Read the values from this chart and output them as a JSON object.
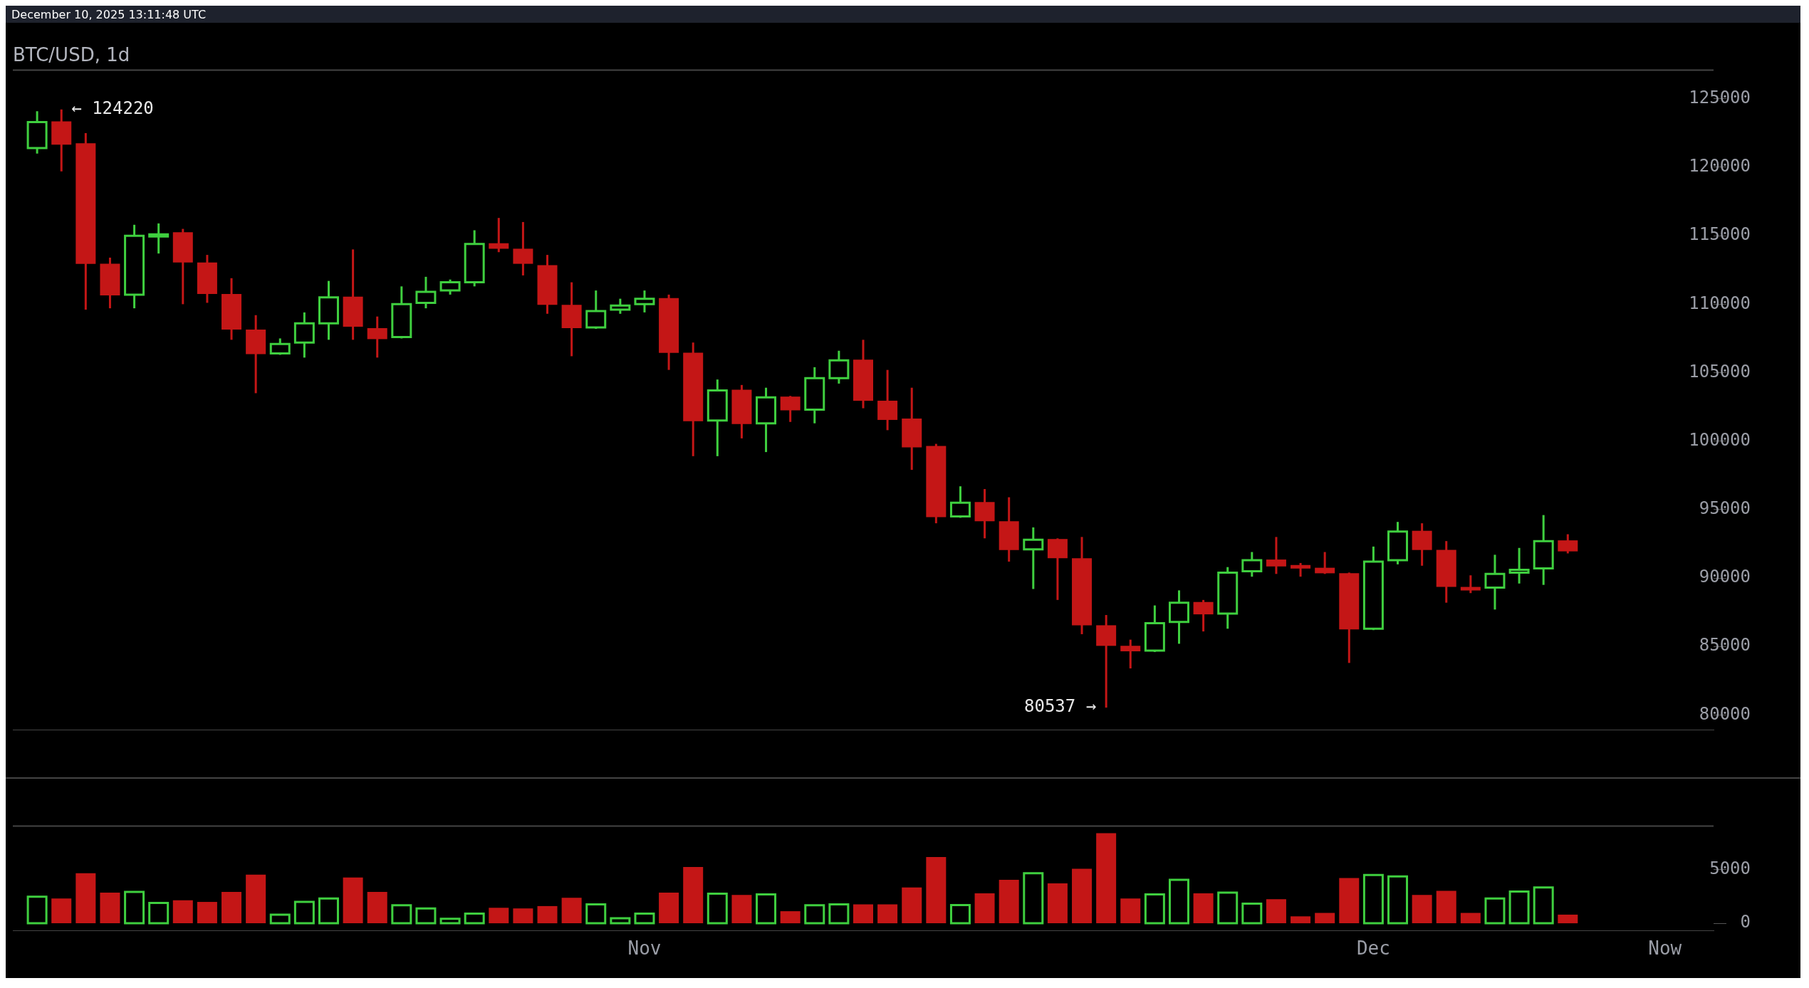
{
  "chart_data": [
    {
      "type": "candlestick",
      "title": "BTC/USD, 1d",
      "annotations": [
        "December 10, 2025 13:11:48 UTC",
        {
          "text": "← 124220",
          "x": "2025-10-08",
          "y": 124220
        },
        {
          "text": "80537 →",
          "x": "2025-11-20",
          "y": 80537
        }
      ],
      "x": [
        "2025-10-07",
        "2025-10-08",
        "2025-10-09",
        "2025-10-10",
        "2025-10-11",
        "2025-10-12",
        "2025-10-13",
        "2025-10-14",
        "2025-10-15",
        "2025-10-16",
        "2025-10-17",
        "2025-10-18",
        "2025-10-19",
        "2025-10-20",
        "2025-10-21",
        "2025-10-22",
        "2025-10-23",
        "2025-10-24",
        "2025-10-25",
        "2025-10-26",
        "2025-10-27",
        "2025-10-28",
        "2025-10-29",
        "2025-10-30",
        "2025-10-31",
        "2025-11-01",
        "2025-11-02",
        "2025-11-03",
        "2025-11-04",
        "2025-11-05",
        "2025-11-06",
        "2025-11-07",
        "2025-11-08",
        "2025-11-09",
        "2025-11-10",
        "2025-11-11",
        "2025-11-12",
        "2025-11-13",
        "2025-11-14",
        "2025-11-15",
        "2025-11-16",
        "2025-11-17",
        "2025-11-18",
        "2025-11-19",
        "2025-11-20",
        "2025-11-21",
        "2025-11-22",
        "2025-11-23",
        "2025-11-24",
        "2025-11-25",
        "2025-11-26",
        "2025-11-27",
        "2025-11-28",
        "2025-11-29",
        "2025-11-30",
        "2025-12-01",
        "2025-12-02",
        "2025-12-03",
        "2025-12-04",
        "2025-12-05",
        "2025-12-06",
        "2025-12-07",
        "2025-12-08",
        "2025-12-09"
      ],
      "ohlc": [
        [
          121400,
          124090,
          121000,
          123300
        ],
        [
          123300,
          124220,
          119700,
          121700
        ],
        [
          121700,
          122500,
          109600,
          113000
        ],
        [
          112900,
          113400,
          109700,
          110700
        ],
        [
          110700,
          115800,
          109700,
          115000
        ],
        [
          115000,
          115900,
          113700,
          115100
        ],
        [
          115200,
          115500,
          110000,
          113100
        ],
        [
          113000,
          113600,
          110100,
          110800
        ],
        [
          110700,
          111900,
          107400,
          108200
        ],
        [
          108100,
          109200,
          103500,
          106400
        ],
        [
          106400,
          107500,
          106300,
          107100
        ],
        [
          107200,
          109400,
          106100,
          108600
        ],
        [
          108600,
          111700,
          107400,
          110500
        ],
        [
          110500,
          114000,
          107400,
          108400
        ],
        [
          108200,
          109100,
          106100,
          107500
        ],
        [
          107600,
          111300,
          107500,
          110000
        ],
        [
          110100,
          112000,
          109700,
          110900
        ],
        [
          111000,
          111800,
          110700,
          111600
        ],
        [
          111600,
          115400,
          111300,
          114400
        ],
        [
          114400,
          116300,
          113800,
          114100
        ],
        [
          114000,
          116000,
          112100,
          113000
        ],
        [
          112800,
          113600,
          109300,
          110000
        ],
        [
          109900,
          111600,
          106200,
          108300
        ],
        [
          108300,
          111000,
          108200,
          109500
        ],
        [
          109600,
          110400,
          109300,
          109900
        ],
        [
          110000,
          111000,
          109400,
          110400
        ],
        [
          110400,
          110700,
          105200,
          106500
        ],
        [
          106400,
          107200,
          98900,
          101500
        ],
        [
          101500,
          104500,
          98900,
          103700
        ],
        [
          103700,
          104100,
          100200,
          101300
        ],
        [
          101300,
          103900,
          99200,
          103200
        ],
        [
          103200,
          103300,
          101400,
          102300
        ],
        [
          102300,
          105400,
          101300,
          104600
        ],
        [
          104600,
          106600,
          104200,
          105900
        ],
        [
          105900,
          107400,
          102400,
          103000
        ],
        [
          102900,
          105200,
          100800,
          101600
        ],
        [
          101600,
          103900,
          97900,
          99600
        ],
        [
          99600,
          99800,
          94000,
          94500
        ],
        [
          94500,
          96700,
          94400,
          95500
        ],
        [
          95500,
          96500,
          92900,
          94200
        ],
        [
          94100,
          95900,
          91200,
          92100
        ],
        [
          92100,
          93700,
          89200,
          92800
        ],
        [
          92800,
          92900,
          88400,
          91500
        ],
        [
          91400,
          93000,
          85900,
          86600
        ],
        [
          86500,
          87300,
          80537,
          85100
        ],
        [
          85000,
          85500,
          83400,
          84700
        ],
        [
          84700,
          88000,
          84600,
          86700
        ],
        [
          86800,
          89100,
          85200,
          88200
        ],
        [
          88200,
          88400,
          86100,
          87400
        ],
        [
          87400,
          90800,
          86300,
          90400
        ],
        [
          90500,
          91900,
          90100,
          91300
        ],
        [
          91300,
          93000,
          90300,
          90900
        ],
        [
          90900,
          91100,
          90100,
          90800
        ],
        [
          90700,
          91900,
          90300,
          90400
        ],
        [
          90300,
          90400,
          83800,
          86300
        ],
        [
          86300,
          92300,
          86200,
          91200
        ],
        [
          91300,
          94100,
          91000,
          93400
        ],
        [
          93400,
          94000,
          90900,
          92100
        ],
        [
          92000,
          92700,
          88200,
          89400
        ],
        [
          89300,
          90200,
          88900,
          89200
        ],
        [
          89300,
          91700,
          87700,
          90300
        ],
        [
          90400,
          92200,
          89600,
          90600
        ],
        [
          90700,
          94600,
          89500,
          92700
        ],
        [
          92700,
          93200,
          91800,
          92000
        ]
      ],
      "colors": [
        "#3fcf3f",
        "#c41616",
        "#c41616",
        "#c41616",
        "#3fcf3f",
        "#3fcf3f",
        "#c41616",
        "#c41616",
        "#c41616",
        "#c41616",
        "#3fcf3f",
        "#3fcf3f",
        "#3fcf3f",
        "#c41616",
        "#c41616",
        "#3fcf3f",
        "#3fcf3f",
        "#3fcf3f",
        "#3fcf3f",
        "#c41616",
        "#c41616",
        "#c41616",
        "#c41616",
        "#3fcf3f",
        "#3fcf3f",
        "#3fcf3f",
        "#c41616",
        "#c41616",
        "#3fcf3f",
        "#c41616",
        "#3fcf3f",
        "#c41616",
        "#3fcf3f",
        "#3fcf3f",
        "#c41616",
        "#c41616",
        "#c41616",
        "#c41616",
        "#3fcf3f",
        "#c41616",
        "#c41616",
        "#3fcf3f",
        "#c41616",
        "#c41616",
        "#c41616",
        "#c41616",
        "#3fcf3f",
        "#3fcf3f",
        "#c41616",
        "#3fcf3f",
        "#3fcf3f",
        "#c41616",
        "#c41616",
        "#c41616",
        "#c41616",
        "#3fcf3f",
        "#3fcf3f",
        "#c41616",
        "#c41616",
        "#c41616",
        "#3fcf3f",
        "#3fcf3f",
        "#3fcf3f",
        "#c41616"
      ],
      "xlim": [
        "2025-10-06",
        "2025-12-15"
      ],
      "ylim": [
        78900,
        127100
      ],
      "yticks": [
        80000,
        85000,
        90000,
        95000,
        100000,
        105000,
        110000,
        115000,
        120000,
        125000
      ],
      "tick_labels": "y",
      "grid": false,
      "legend": false
    },
    {
      "type": "bar",
      "x": [
        "2025-10-07",
        "2025-10-08",
        "2025-10-09",
        "2025-10-10",
        "2025-10-11",
        "2025-10-12",
        "2025-10-13",
        "2025-10-14",
        "2025-10-15",
        "2025-10-16",
        "2025-10-17",
        "2025-10-18",
        "2025-10-19",
        "2025-10-20",
        "2025-10-21",
        "2025-10-22",
        "2025-10-23",
        "2025-10-24",
        "2025-10-25",
        "2025-10-26",
        "2025-10-27",
        "2025-10-28",
        "2025-10-29",
        "2025-10-30",
        "2025-10-31",
        "2025-11-01",
        "2025-11-02",
        "2025-11-03",
        "2025-11-04",
        "2025-11-05",
        "2025-11-06",
        "2025-11-07",
        "2025-11-08",
        "2025-11-09",
        "2025-11-10",
        "2025-11-11",
        "2025-11-12",
        "2025-11-13",
        "2025-11-14",
        "2025-11-15",
        "2025-11-16",
        "2025-11-17",
        "2025-11-18",
        "2025-11-19",
        "2025-11-20",
        "2025-11-21",
        "2025-11-22",
        "2025-11-23",
        "2025-11-24",
        "2025-11-25",
        "2025-11-26",
        "2025-11-27",
        "2025-11-28",
        "2025-11-29",
        "2025-11-30",
        "2025-12-01",
        "2025-12-02",
        "2025-12-03",
        "2025-12-04",
        "2025-12-05",
        "2025-12-06",
        "2025-12-07",
        "2025-12-08",
        "2025-12-09"
      ],
      "values": [
        2480,
        2320,
        4680,
        2870,
        2940,
        1900,
        2160,
        2000,
        2940,
        4550,
        810,
        2000,
        2320,
        4290,
        2940,
        1680,
        1390,
        420,
        900,
        1450,
        1390,
        1610,
        2390,
        1770,
        480,
        900,
        2870,
        5260,
        2770,
        2650,
        2710,
        1130,
        1680,
        1770,
        1770,
        1770,
        3350,
        6190,
        1710,
        2810,
        4060,
        4680,
        3740,
        5100,
        8420,
        2320,
        2710,
        4060,
        2810,
        2870,
        1840,
        2260,
        650,
        970,
        4230,
        4520,
        4390,
        2650,
        3030,
        970,
        2320,
        2970,
        3350,
        810
      ],
      "colors": [
        "#3fcf3f",
        "#c41616",
        "#c41616",
        "#c41616",
        "#3fcf3f",
        "#3fcf3f",
        "#c41616",
        "#c41616",
        "#c41616",
        "#c41616",
        "#3fcf3f",
        "#3fcf3f",
        "#3fcf3f",
        "#c41616",
        "#c41616",
        "#3fcf3f",
        "#3fcf3f",
        "#3fcf3f",
        "#3fcf3f",
        "#c41616",
        "#c41616",
        "#c41616",
        "#c41616",
        "#3fcf3f",
        "#3fcf3f",
        "#3fcf3f",
        "#c41616",
        "#c41616",
        "#3fcf3f",
        "#c41616",
        "#3fcf3f",
        "#c41616",
        "#3fcf3f",
        "#3fcf3f",
        "#c41616",
        "#c41616",
        "#c41616",
        "#c41616",
        "#3fcf3f",
        "#c41616",
        "#c41616",
        "#3fcf3f",
        "#c41616",
        "#c41616",
        "#c41616",
        "#c41616",
        "#3fcf3f",
        "#3fcf3f",
        "#c41616",
        "#3fcf3f",
        "#3fcf3f",
        "#c41616",
        "#c41616",
        "#c41616",
        "#c41616",
        "#3fcf3f",
        "#3fcf3f",
        "#c41616",
        "#c41616",
        "#c41616",
        "#3fcf3f",
        "#3fcf3f",
        "#3fcf3f",
        "#c41616"
      ],
      "xlim": [
        "2025-10-06",
        "2025-12-15"
      ],
      "xticks": [
        {
          "value": "2025-11-01",
          "label": "Nov"
        },
        {
          "value": "2025-12-01",
          "label": "Dec"
        },
        {
          "value": "2025-12-13",
          "label": "Now"
        }
      ],
      "ylim": [
        -700,
        9100
      ],
      "yticks": [
        0,
        5000
      ],
      "grid": false,
      "legend": false
    }
  ]
}
